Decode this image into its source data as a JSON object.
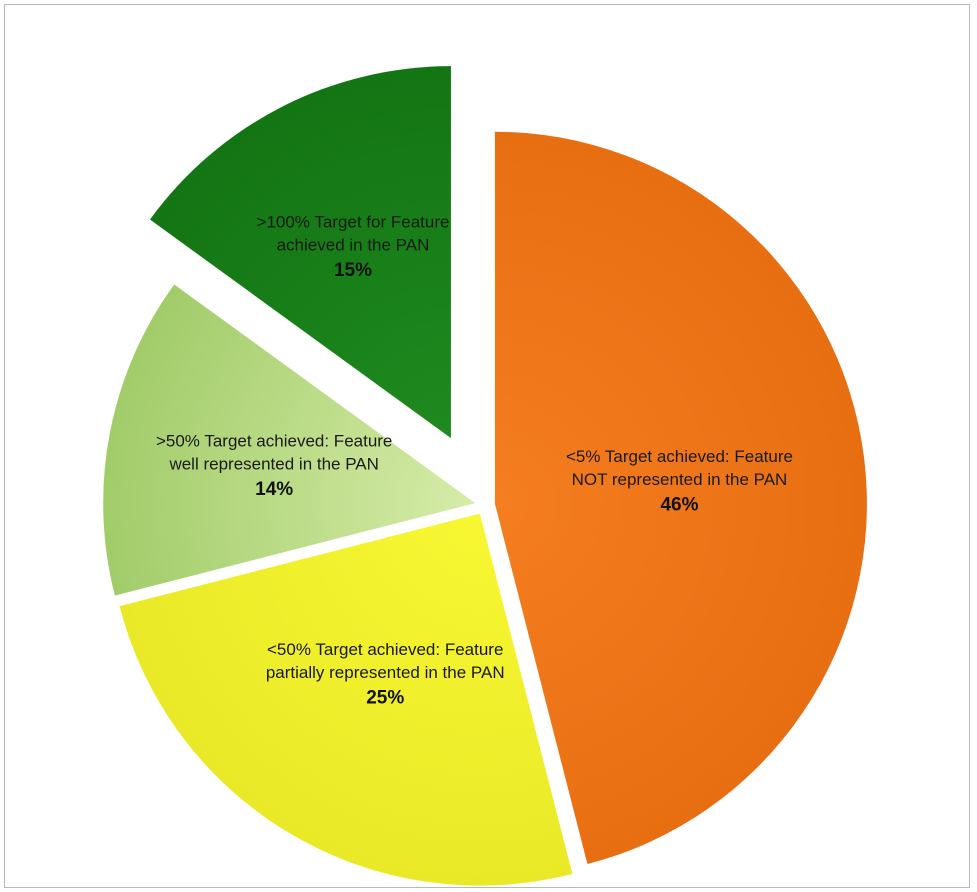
{
  "chart_data": {
    "type": "pie",
    "exploded": true,
    "title": "",
    "legend": "none",
    "slices": [
      {
        "label_lines": [
          "<5% Target achieved: Feature",
          "NOT represented in the PAN"
        ],
        "value": 46,
        "value_label": "46%",
        "color": "#F57E20",
        "color_dark": "#E86E12"
      },
      {
        "label_lines": [
          "<50% Target achieved: Feature",
          "partially represented in the PAN"
        ],
        "value": 25,
        "value_label": "25%",
        "color": "#F7F732",
        "color_dark": "#E9E928"
      },
      {
        "label_lines": [
          ">50% Target achieved: Feature",
          "well represented in the PAN"
        ],
        "value": 14,
        "value_label": "14%",
        "color": "#D6ECA8",
        "color_dark": "#A2CC6A"
      },
      {
        "label_lines": [
          ">100% Target for Feature",
          "achieved in the PAN"
        ],
        "value": 15,
        "value_label": "15%",
        "color": "#1F8A1F",
        "color_dark": "#137513"
      }
    ]
  }
}
